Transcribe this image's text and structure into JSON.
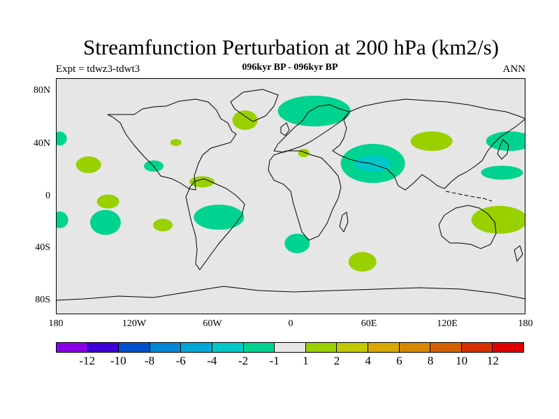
{
  "title": "Streamfunction Perturbation at 200 hPa (km2/s)",
  "left_label": "Expt = tdwz3-tdwt3",
  "center_label": "096kyr BP - 096kyr BP",
  "right_label": "ANN",
  "map": {
    "projection": "cylindrical-equidistant",
    "lon_range": [
      -180,
      180
    ],
    "lat_range": [
      -90,
      90
    ],
    "ocean_color": "#e6e6e6",
    "coastline_color": "#000000",
    "y_ticks": [
      "80N",
      "40N",
      "0",
      "40S",
      "80S"
    ],
    "x_ticks": [
      "180",
      "120W",
      "60W",
      "0",
      "60E",
      "120E",
      "180"
    ],
    "anomalies": [
      {
        "lon": -177,
        "lat": 44,
        "class": "-1",
        "color": "#00d38f"
      },
      {
        "lon": -155,
        "lat": 24,
        "class": "1",
        "color": "#99d000"
      },
      {
        "lon": -105,
        "lat": 23,
        "class": "-1",
        "color": "#00d38f"
      },
      {
        "lon": -140,
        "lat": -4,
        "class": "1",
        "color": "#99d000"
      },
      {
        "lon": -177,
        "lat": -18,
        "class": "-1",
        "color": "#00d38f"
      },
      {
        "lon": -142,
        "lat": -20,
        "class": "-1",
        "color": "#00d38f"
      },
      {
        "lon": -98,
        "lat": -22,
        "class": "1",
        "color": "#99d000"
      },
      {
        "lon": -68,
        "lat": 11,
        "class": "1",
        "color": "#99d000"
      },
      {
        "lon": -55,
        "lat": -16,
        "class": "-1",
        "color": "#00d38f"
      },
      {
        "lon": -35,
        "lat": 58,
        "class": "1",
        "color": "#99d000"
      },
      {
        "lon": -88,
        "lat": 41,
        "class": "1",
        "color": "#99d000"
      },
      {
        "lon": 18,
        "lat": 65,
        "class": "-1",
        "color": "#00d38f"
      },
      {
        "lon": 10,
        "lat": 33,
        "class": "1",
        "color": "#99d000"
      },
      {
        "lon": 63,
        "lat": 25,
        "class": "-2",
        "color": "#00d38f"
      },
      {
        "lon": 63,
        "lat": 25,
        "class": "-4",
        "color": "#00c8c8"
      },
      {
        "lon": 108,
        "lat": 42,
        "class": "1",
        "color": "#99d000"
      },
      {
        "lon": 168,
        "lat": 42,
        "class": "-1",
        "color": "#00d38f"
      },
      {
        "lon": 162,
        "lat": 18,
        "class": "-1",
        "color": "#00d38f"
      },
      {
        "lon": 160,
        "lat": -18,
        "class": "1",
        "color": "#99d000"
      },
      {
        "lon": 5,
        "lat": -36,
        "class": "-1",
        "color": "#00d38f"
      },
      {
        "lon": 55,
        "lat": -50,
        "class": "1",
        "color": "#99d000"
      }
    ]
  },
  "colorbar": {
    "colors": [
      "#8a00e8",
      "#3c00d8",
      "#0050d0",
      "#0088d8",
      "#00a8d8",
      "#00c8c8",
      "#00d38f",
      "#e6e6e6",
      "#99d000",
      "#c4c800",
      "#d8a800",
      "#d88800",
      "#d86000",
      "#d83000",
      "#e00000"
    ],
    "labels": [
      "-12",
      "-10",
      "-8",
      "-6",
      "-4",
      "-2",
      "-1",
      "1",
      "2",
      "4",
      "6",
      "8",
      "10",
      "12"
    ]
  }
}
